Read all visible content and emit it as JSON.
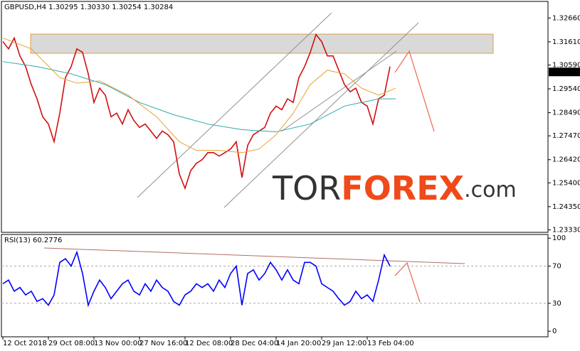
{
  "chart_data": [
    {
      "type": "line",
      "title": "GBPUSD,H4  1.30295 1.30330 1.30254 1.30284",
      "categories": [
        "12 Oct 2018",
        null,
        null,
        null,
        null,
        null,
        null,
        null,
        "29 Oct 08:00",
        null,
        null,
        null,
        null,
        null,
        null,
        null,
        "13 Nov 00:00",
        null,
        null,
        null,
        null,
        null,
        null,
        null,
        "27 Nov 16:00",
        null,
        null,
        null,
        null,
        null,
        null,
        null,
        "12 Dec 08:00",
        null,
        null,
        null,
        null,
        null,
        null,
        null,
        "28 Dec 04:00",
        null,
        null,
        null,
        null,
        null,
        null,
        null,
        "14 Jan 20:00",
        null,
        null,
        null,
        null,
        null,
        null,
        null,
        "29 Jan 12:00",
        null,
        null,
        null,
        null,
        null,
        null,
        null,
        "13 Feb 04:00",
        null,
        null,
        null,
        null
      ],
      "series": [
        {
          "color": "#d01010",
          "values": [
            1.3162,
            1.313,
            1.3178,
            1.3099,
            1.3052,
            1.2973,
            1.291,
            1.2831,
            1.2799,
            1.2721,
            1.2847,
            1.3004,
            1.3052,
            1.313,
            1.3115,
            1.302,
            1.2894,
            1.2957,
            1.2926,
            1.2831,
            1.2847,
            1.2799,
            1.2862,
            1.2815,
            1.2784,
            1.2799,
            1.2768,
            1.2736,
            1.2768,
            1.2752,
            1.2721,
            1.2579,
            1.2516,
            1.2594,
            1.2626,
            1.2642,
            1.2673,
            1.2673,
            1.2658,
            1.2673,
            1.2689,
            1.2721,
            1.2563,
            1.2705,
            1.2752,
            1.2768,
            1.2784,
            1.2847,
            1.2878,
            1.2862,
            1.291,
            1.2894,
            1.3004,
            1.3052,
            1.3115,
            1.3193,
            1.3162,
            1.3099,
            1.3099,
            1.3036,
            1.2973,
            1.2941,
            1.2957,
            1.2894,
            1.2878,
            1.2799,
            1.291,
            1.2926,
            1.3052
          ]
        },
        {
          "color": "#2aa8a8",
          "x": [
            0,
            6,
            12,
            18,
            24,
            30,
            36,
            42,
            48,
            54,
            60,
            66,
            69
          ],
          "values": [
            1.3074,
            1.3052,
            1.302,
            1.2973,
            1.2894,
            1.284,
            1.2799,
            1.2774,
            1.2765,
            1.2799,
            1.2878,
            1.291,
            1.291
          ]
        },
        {
          "color": "#e8a030",
          "x": [
            0,
            5,
            10,
            13,
            17,
            22,
            27,
            31,
            34,
            38,
            42,
            45,
            48,
            51,
            54,
            57,
            60,
            63,
            66,
            69
          ],
          "values": [
            1.3178,
            1.313,
            1.3004,
            1.2979,
            1.2989,
            1.2926,
            1.2831,
            1.2721,
            1.2683,
            1.2683,
            1.2673,
            1.2689,
            1.2752,
            1.2847,
            1.2973,
            1.3036,
            1.302,
            1.2957,
            1.2926,
            1.2957
          ]
        }
      ],
      "ylim": [
        1.2322,
        1.3339
      ],
      "yticks": [
        {
          "value": 1.3266,
          "label": "1.32660"
        },
        {
          "value": 1.3161,
          "label": "1.31610"
        },
        {
          "value": 1.3059,
          "label": "1.30590"
        },
        {
          "value": 1.2954,
          "label": "1.29540"
        },
        {
          "value": 1.2849,
          "label": "1.28490"
        },
        {
          "value": 1.2747,
          "label": "1.27470"
        },
        {
          "value": 1.2642,
          "label": "1.26420"
        },
        {
          "value": 1.254,
          "label": "1.25400"
        },
        {
          "value": 1.2435,
          "label": "1.24350"
        },
        {
          "value": 1.2333,
          "label": "1.23330"
        }
      ],
      "last_price": 1.30284,
      "watermark": [
        "TOR",
        "FOREX",
        ".com"
      ]
    },
    {
      "type": "line",
      "title": "RSI(13) 60.2776",
      "series": [
        {
          "color": "#0000ff",
          "values": [
            51,
            55,
            43,
            47,
            39,
            43,
            32,
            35,
            28,
            39,
            74,
            78,
            70,
            85,
            62,
            28,
            43,
            55,
            47,
            35,
            43,
            51,
            55,
            43,
            39,
            51,
            43,
            55,
            47,
            43,
            32,
            28,
            39,
            43,
            51,
            47,
            51,
            43,
            55,
            47,
            62,
            70,
            28,
            62,
            66,
            55,
            62,
            74,
            66,
            55,
            66,
            55,
            51,
            74,
            74,
            70,
            51,
            47,
            43,
            35,
            28,
            32,
            43,
            35,
            39,
            32,
            55,
            82,
            70
          ]
        }
      ],
      "ylim": [
        -6,
        104
      ],
      "yticks": [
        100,
        70,
        30,
        0
      ],
      "levels": [
        70,
        30
      ]
    }
  ]
}
